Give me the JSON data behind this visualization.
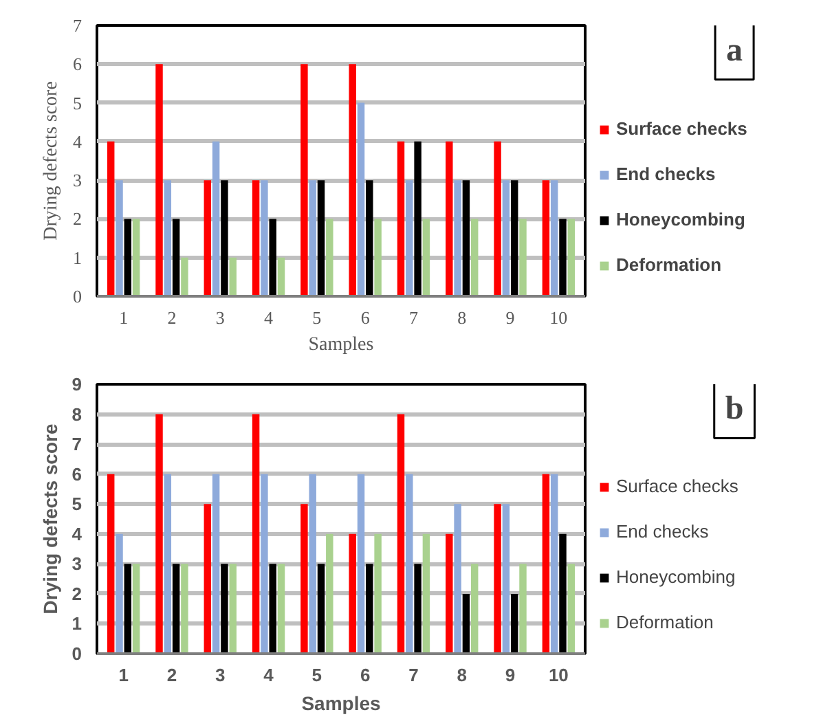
{
  "chart_data": [
    {
      "type": "bar",
      "xlabel": "Samples",
      "ylabel": "Drying defects score",
      "categories": [
        "1",
        "2",
        "3",
        "4",
        "5",
        "6",
        "7",
        "8",
        "9",
        "10"
      ],
      "ylim": [
        0,
        7
      ],
      "yticks": [
        0,
        1,
        2,
        3,
        4,
        5,
        6,
        7
      ],
      "grid": "y",
      "legend": "right",
      "annotations": [
        "a"
      ],
      "series": [
        {
          "name": "Surface checks",
          "color": "#ff0000",
          "values": [
            4,
            6,
            3,
            3,
            6,
            6,
            4,
            4,
            4,
            3
          ]
        },
        {
          "name": "End checks",
          "color": "#8eaadb",
          "values": [
            3,
            3,
            4,
            3,
            3,
            5,
            3,
            3,
            3,
            3
          ]
        },
        {
          "name": "Honeycombing",
          "color": "#000000",
          "values": [
            2,
            2,
            3,
            2,
            3,
            3,
            4,
            3,
            3,
            2
          ]
        },
        {
          "name": "Deformation",
          "color": "#a9d18e",
          "values": [
            2,
            1,
            1,
            1,
            2,
            2,
            2,
            2,
            2,
            2
          ]
        }
      ]
    },
    {
      "type": "bar",
      "xlabel": "Samples",
      "ylabel": "Drying defects score",
      "categories": [
        "1",
        "2",
        "3",
        "4",
        "5",
        "6",
        "7",
        "8",
        "9",
        "10"
      ],
      "ylim": [
        0,
        9
      ],
      "yticks": [
        0,
        1,
        2,
        3,
        4,
        5,
        6,
        7,
        8,
        9
      ],
      "grid": "y",
      "legend": "right",
      "annotations": [
        "b"
      ],
      "series": [
        {
          "name": "Surface checks",
          "color": "#ff0000",
          "values": [
            6,
            8,
            5,
            8,
            5,
            4,
            8,
            4,
            5,
            6
          ]
        },
        {
          "name": "End checks",
          "color": "#8eaadb",
          "values": [
            4,
            6,
            6,
            6,
            6,
            6,
            6,
            5,
            5,
            6
          ]
        },
        {
          "name": "Honeycombing",
          "color": "#000000",
          "values": [
            3,
            3,
            3,
            3,
            3,
            3,
            3,
            2,
            2,
            4
          ]
        },
        {
          "name": "Deformation",
          "color": "#a9d18e",
          "values": [
            3,
            3,
            3,
            3,
            4,
            4,
            4,
            3,
            3,
            3
          ]
        }
      ]
    }
  ]
}
